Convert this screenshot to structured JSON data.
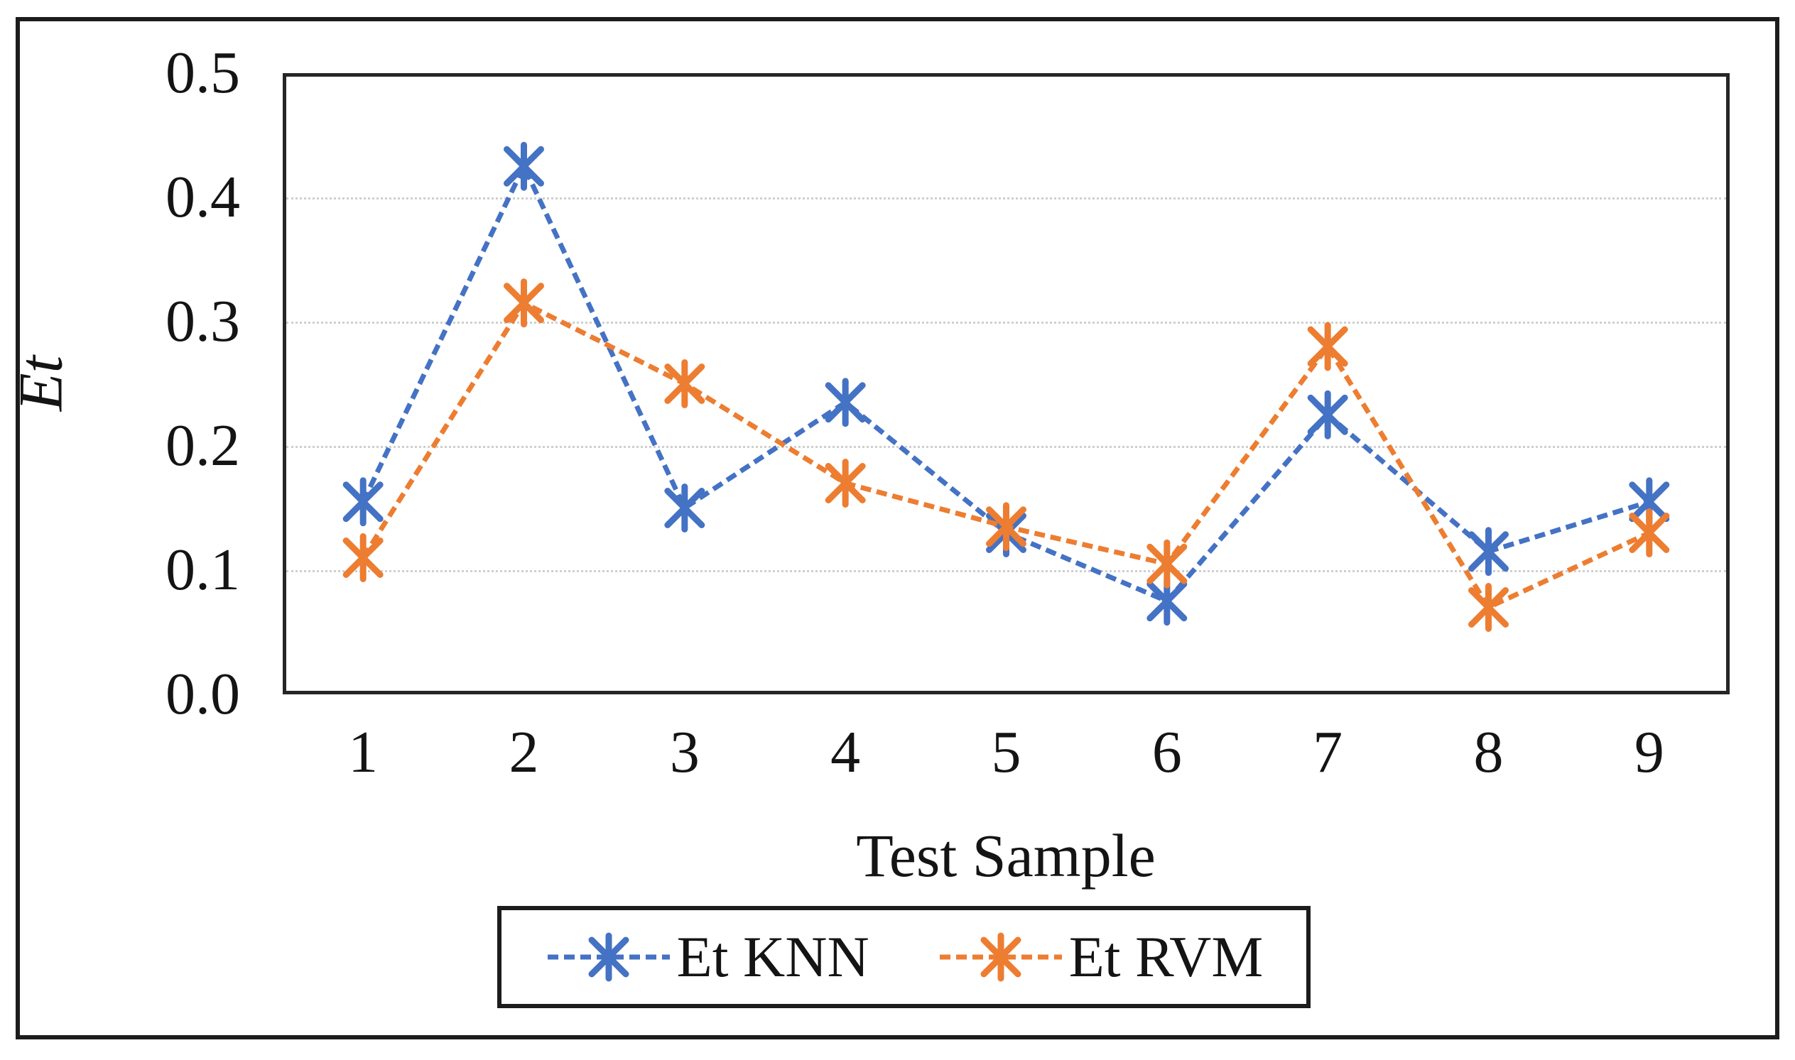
{
  "chart_data": {
    "type": "line",
    "title": "",
    "xlabel": "Test Sample",
    "ylabel": "Et",
    "categories": [
      "1",
      "2",
      "3",
      "4",
      "5",
      "6",
      "7",
      "8",
      "9"
    ],
    "ylim": [
      0.0,
      0.5
    ],
    "yticks": [
      "0.0",
      "0.1",
      "0.2",
      "0.3",
      "0.4",
      "0.5"
    ],
    "grid": "horizontal-dotted",
    "gridline_color": "#cfcfcf",
    "axis_color": "#262626",
    "frame_color": "#1c1c1c",
    "legend_position": "bottom-boxed",
    "series": [
      {
        "name": "Et KNN",
        "color": "#4472C4",
        "marker": "asterisk",
        "line_style": "dashed",
        "values": [
          0.155,
          0.425,
          0.15,
          0.235,
          0.13,
          0.075,
          0.225,
          0.115,
          0.155
        ]
      },
      {
        "name": "Et RVM",
        "color": "#ED7D31",
        "marker": "asterisk",
        "line_style": "dashed",
        "values": [
          0.11,
          0.315,
          0.25,
          0.17,
          0.135,
          0.105,
          0.28,
          0.07,
          0.13
        ]
      }
    ]
  }
}
